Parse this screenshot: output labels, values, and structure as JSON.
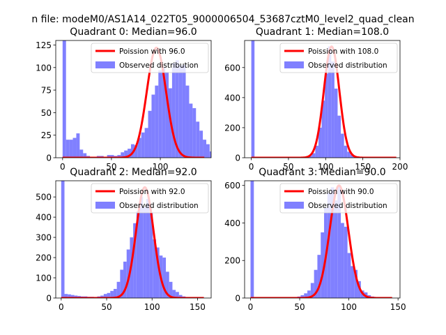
{
  "figure": {
    "suptitle": "n file: modeM0/AS1A14_022T05_9000006504_53687cztM0_level2_quad_clean"
  },
  "colors": {
    "hist": "#8080ff",
    "fit": "#ff0000",
    "axes": "#000000"
  },
  "chart_data": [
    {
      "type": "bar",
      "title": "Quadrant 0: Median=96.0",
      "xlim": [
        -7,
        152
      ],
      "ylim": [
        0,
        130
      ],
      "xticks": [
        0,
        50,
        100
      ],
      "yticks": [
        0,
        25,
        50,
        75,
        100,
        125
      ],
      "legend_loc": "top-right",
      "legend": [
        "Poission with 96.0",
        "Observed distribution"
      ],
      "fit_mean": 96.0,
      "fit_peak": 122,
      "bin_start": 0,
      "bin_width": 3.5,
      "values": [
        130,
        20,
        20,
        22,
        27,
        9,
        5,
        2,
        1,
        1,
        2,
        2,
        1,
        3,
        3,
        2,
        3,
        6,
        8,
        10,
        15,
        14,
        22,
        28,
        33,
        52,
        70,
        80,
        97,
        100,
        95,
        77,
        105,
        108,
        102,
        103,
        80,
        60,
        55,
        40,
        30,
        20,
        15,
        7,
        3,
        2
      ]
    },
    {
      "type": "bar",
      "title": "Quadrant 1: Median=108.0",
      "xlim": [
        -9,
        200
      ],
      "ylim": [
        0,
        780
      ],
      "xticks": [
        0,
        50,
        100,
        150,
        200
      ],
      "yticks": [
        0,
        200,
        400,
        600
      ],
      "legend_loc": "top-right",
      "legend": [
        "Poission with 108.0",
        "Observed distribution"
      ],
      "fit_mean": 108.0,
      "fit_peak": 740,
      "bin_start": 0,
      "bin_width": 4.3,
      "values": [
        780,
        2,
        1,
        1,
        0,
        0,
        0,
        1,
        0,
        0,
        1,
        1,
        1,
        2,
        3,
        4,
        5,
        8,
        15,
        30,
        80,
        200,
        380,
        560,
        740,
        640,
        460,
        280,
        160,
        80,
        40,
        20,
        10,
        5,
        3,
        2,
        1,
        1,
        0,
        0,
        0,
        0,
        0,
        0
      ]
    },
    {
      "type": "bar",
      "title": "Quadrant 2: Median=92.0",
      "xlim": [
        -6,
        165
      ],
      "ylim": [
        0,
        580
      ],
      "xticks": [
        0,
        50,
        100,
        150
      ],
      "yticks": [
        0,
        100,
        200,
        300,
        400,
        500
      ],
      "legend_loc": "top-right",
      "legend": [
        "Poission with 92.0",
        "Observed distribution"
      ],
      "fit_mean": 92.0,
      "fit_peak": 548,
      "bin_start": 0,
      "bin_width": 3.6,
      "values": [
        580,
        20,
        18,
        15,
        12,
        10,
        8,
        8,
        6,
        6,
        5,
        8,
        12,
        20,
        25,
        35,
        45,
        80,
        140,
        180,
        240,
        300,
        370,
        430,
        500,
        450,
        490,
        420,
        290,
        250,
        210,
        200,
        130,
        80,
        40,
        30,
        15,
        8,
        4,
        2,
        1,
        0,
        0
      ]
    },
    {
      "type": "bar",
      "title": "Quadrant 3: Median=90.0",
      "xlim": [
        -6,
        152
      ],
      "ylim": [
        0,
        625
      ],
      "xticks": [
        0,
        50,
        100,
        150
      ],
      "yticks": [
        0,
        200,
        400,
        600
      ],
      "legend_loc": "top-right",
      "legend": [
        "Poission with 90.0",
        "Observed distribution"
      ],
      "fit_mean": 90.0,
      "fit_peak": 600,
      "bin_start": 0,
      "bin_width": 3.4,
      "values": [
        625,
        2,
        1,
        1,
        0,
        0,
        0,
        0,
        0,
        0,
        1,
        2,
        3,
        5,
        8,
        15,
        25,
        40,
        80,
        150,
        230,
        350,
        480,
        560,
        590,
        520,
        600,
        400,
        380,
        240,
        170,
        150,
        90,
        40,
        30,
        15,
        8,
        4,
        2,
        1,
        0,
        0
      ]
    }
  ]
}
